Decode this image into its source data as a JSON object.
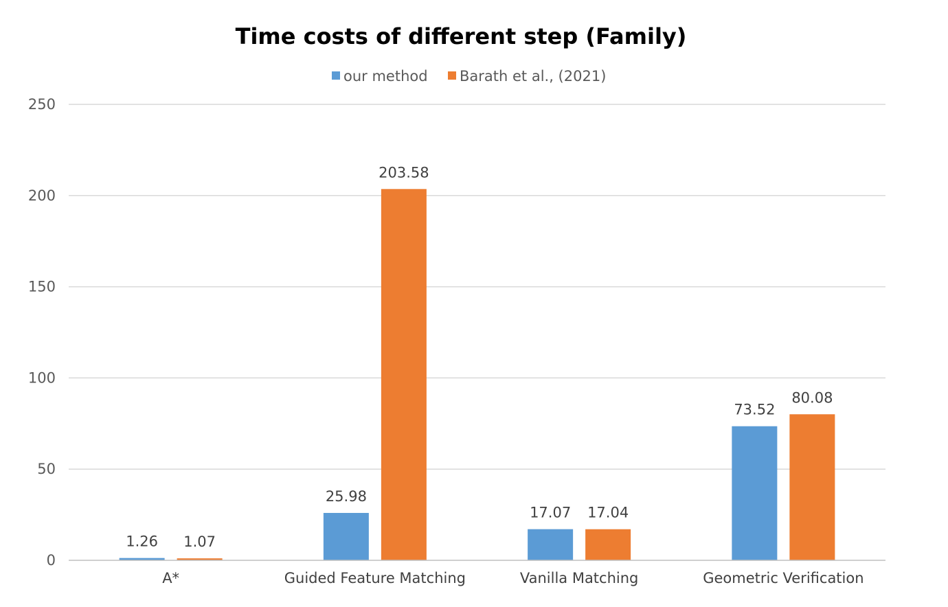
{
  "chart_data": {
    "type": "bar",
    "title": "Time costs of different  step (Family)",
    "categories": [
      "A*",
      "Guided Feature Matching",
      "Vanilla Matching",
      "Geometric Verification"
    ],
    "series": [
      {
        "name": "our method",
        "color": "#5b9bd5",
        "values": [
          1.26,
          25.98,
          17.07,
          73.52
        ]
      },
      {
        "name": "Barath et al., (2021)",
        "color": "#ed7d31",
        "values": [
          1.07,
          203.58,
          17.04,
          80.08
        ]
      }
    ],
    "data_labels": [
      [
        "1.26",
        "25.98",
        "17.07",
        "73.52"
      ],
      [
        "1.07",
        "203.58",
        "17.04",
        "80.08"
      ]
    ],
    "yticks": [
      "0",
      "50",
      "100",
      "150",
      "200",
      "250"
    ],
    "ylim": [
      0,
      250
    ],
    "xlabel": "",
    "ylabel": "",
    "grid": true,
    "legend_position": "top-center"
  }
}
